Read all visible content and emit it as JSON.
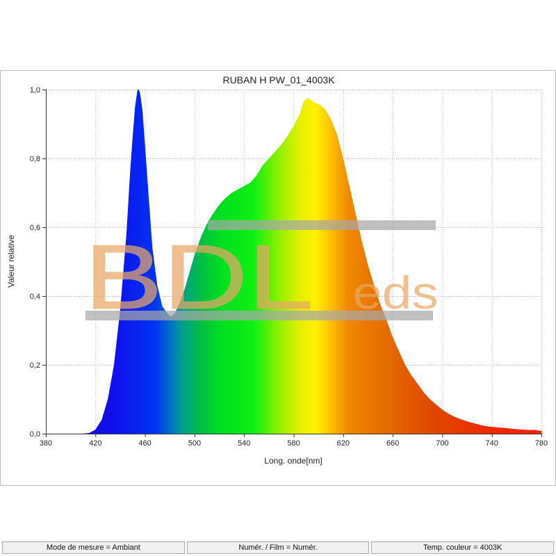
{
  "chart_data": {
    "type": "area",
    "title": "RUBAN H PW_01_4003K",
    "xlabel": "Long. onde[nm]",
    "ylabel": "Valeur relative",
    "xlim": [
      380,
      780
    ],
    "ylim": [
      0,
      1.0
    ],
    "x_ticks": [
      380,
      420,
      460,
      500,
      540,
      580,
      620,
      660,
      700,
      740,
      780
    ],
    "x_tick_labels": [
      "380",
      "420",
      "460",
      "500",
      "540",
      "580",
      "620",
      "660",
      "700",
      "740",
      "780"
    ],
    "y_ticks": [
      0,
      0.2,
      0.4,
      0.6,
      0.8,
      1.0
    ],
    "y_tick_labels": [
      "0,0",
      "0,2",
      "0,4",
      "0,6",
      "0,8",
      "1,0"
    ],
    "grid": true,
    "fill": "spectral-gradient",
    "series": [
      {
        "x": [
          380,
          410,
          415,
          420,
          425,
          430,
          435,
          440,
          445,
          448,
          450,
          452,
          454,
          455,
          456,
          458,
          460,
          463,
          466,
          470,
          474,
          478,
          481,
          484,
          488,
          492,
          496,
          500,
          505,
          510,
          515,
          520,
          525,
          530,
          535,
          540,
          545,
          550,
          555,
          560,
          565,
          570,
          575,
          580,
          585,
          588,
          591,
          594,
          597,
          600,
          605,
          610,
          615,
          620,
          625,
          630,
          635,
          640,
          645,
          650,
          655,
          660,
          665,
          670,
          675,
          680,
          685,
          690,
          695,
          700,
          705,
          710,
          715,
          720,
          725,
          730,
          735,
          740,
          745,
          750,
          755,
          760,
          765,
          770,
          775,
          780
        ],
        "y": [
          0,
          0,
          0.002,
          0.012,
          0.04,
          0.1,
          0.2,
          0.36,
          0.58,
          0.76,
          0.86,
          0.95,
          1.0,
          1.0,
          0.99,
          0.94,
          0.84,
          0.69,
          0.54,
          0.43,
          0.37,
          0.35,
          0.34,
          0.35,
          0.38,
          0.42,
          0.47,
          0.52,
          0.57,
          0.61,
          0.64,
          0.665,
          0.685,
          0.7,
          0.71,
          0.72,
          0.73,
          0.75,
          0.78,
          0.8,
          0.82,
          0.84,
          0.865,
          0.895,
          0.93,
          0.965,
          0.975,
          0.97,
          0.962,
          0.958,
          0.945,
          0.915,
          0.87,
          0.8,
          0.72,
          0.64,
          0.56,
          0.49,
          0.43,
          0.375,
          0.33,
          0.28,
          0.24,
          0.2,
          0.17,
          0.145,
          0.12,
          0.1,
          0.085,
          0.07,
          0.058,
          0.049,
          0.042,
          0.036,
          0.031,
          0.026,
          0.022,
          0.02,
          0.018,
          0.017,
          0.015,
          0.013,
          0.012,
          0.011,
          0.011,
          0.008
        ]
      }
    ]
  },
  "watermark": {
    "text_main": "BDL",
    "text_small": "eds",
    "color": "#e8a868"
  },
  "statusbar": {
    "mode": "Mode de mesure = Ambiant",
    "numer": "Numér. / Film = Numér.",
    "temp": "Temp. couleur = 4003K"
  }
}
